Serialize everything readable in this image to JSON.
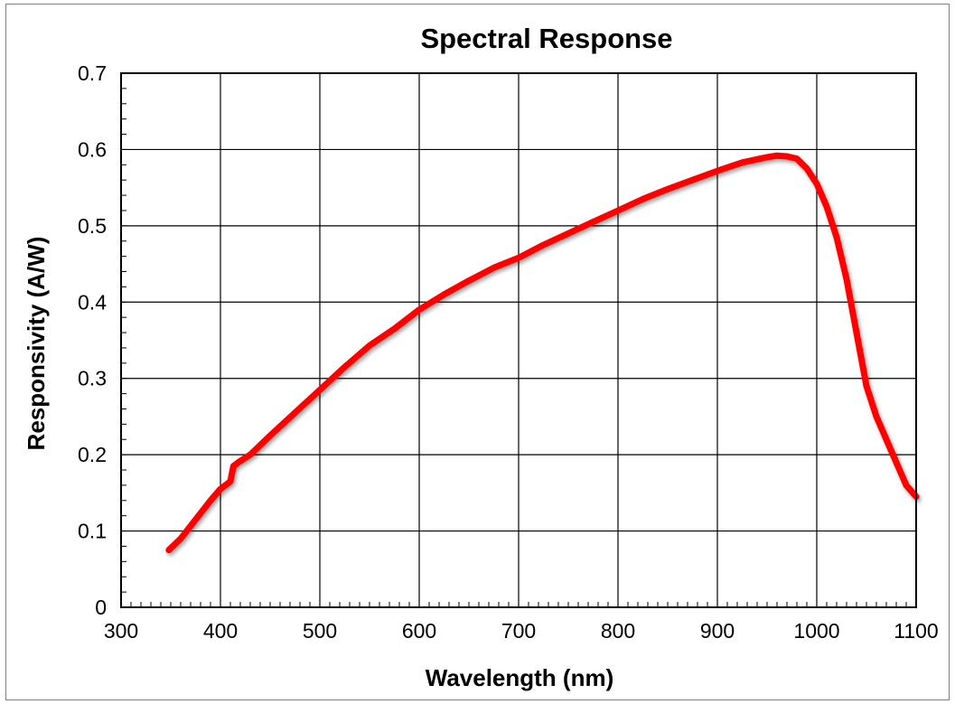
{
  "chart_data": {
    "type": "line",
    "title": "Spectral Response",
    "xlabel": "Wavelength (nm)",
    "ylabel": "Responsivity (A/W)",
    "xlim": [
      300,
      1100
    ],
    "ylim": [
      0,
      0.7
    ],
    "xticks": [
      "300",
      "400",
      "500",
      "600",
      "700",
      "800",
      "900",
      "1000",
      "1100"
    ],
    "yticks": [
      "0",
      "0.1",
      "0.2",
      "0.3",
      "0.4",
      "0.5",
      "0.6",
      "0.7"
    ],
    "grid": true,
    "series": [
      {
        "color": "#ff0000",
        "x": [
          348,
          360,
          375,
          390,
          400,
          410,
          413,
          418,
          430,
          450,
          475,
          500,
          525,
          550,
          575,
          600,
          625,
          650,
          675,
          700,
          725,
          750,
          775,
          800,
          825,
          850,
          875,
          900,
          925,
          950,
          960,
          970,
          980,
          990,
          1000,
          1010,
          1020,
          1030,
          1040,
          1050,
          1060,
          1070,
          1080,
          1090,
          1100
        ],
        "y": [
          0.075,
          0.09,
          0.115,
          0.14,
          0.155,
          0.165,
          0.185,
          0.19,
          0.2,
          0.225,
          0.255,
          0.285,
          0.315,
          0.343,
          0.365,
          0.39,
          0.41,
          0.428,
          0.445,
          0.458,
          0.475,
          0.49,
          0.505,
          0.52,
          0.535,
          0.548,
          0.56,
          0.572,
          0.583,
          0.59,
          0.592,
          0.591,
          0.588,
          0.575,
          0.555,
          0.525,
          0.485,
          0.43,
          0.36,
          0.29,
          0.25,
          0.22,
          0.19,
          0.16,
          0.145
        ]
      }
    ]
  }
}
